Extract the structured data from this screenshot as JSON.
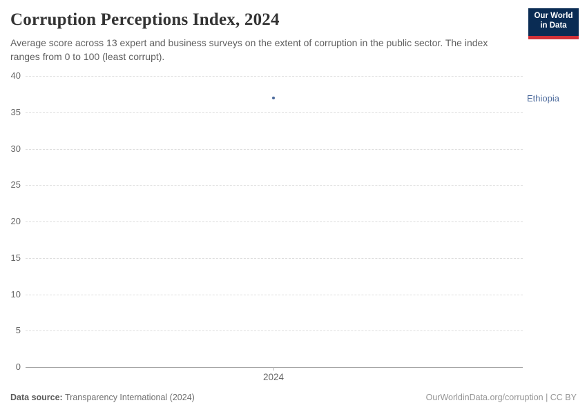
{
  "header": {
    "title": "Corruption Perceptions Index, 2024",
    "subtitle": "Average score across 13 expert and business surveys on the extent of corruption in the public sector. The index ranges from 0 to 100 (least corrupt)."
  },
  "logo": {
    "line1": "Our World",
    "line2": "in Data",
    "bg_color": "#0A2C54",
    "bar_color": "#D13239"
  },
  "chart_data": {
    "type": "scatter",
    "title": "Corruption Perceptions Index, 2024",
    "xlabel": "",
    "ylabel": "",
    "x": [
      2024
    ],
    "x_tick_labels": [
      "2024"
    ],
    "series": [
      {
        "name": "Ethiopia",
        "values": [
          37
        ],
        "color": "#4C6A9C"
      }
    ],
    "entity_label": "Ethiopia",
    "y_ticks": [
      0,
      5,
      10,
      15,
      20,
      25,
      30,
      35,
      40
    ],
    "ylim": [
      0,
      40
    ],
    "grid": true,
    "grid_style": "dashed",
    "legend_position": "right-of-plot"
  },
  "footer": {
    "source_label": "Data source:",
    "source_text": "Transparency International (2024)",
    "right_text": "OurWorldinData.org/corruption | CC BY"
  }
}
